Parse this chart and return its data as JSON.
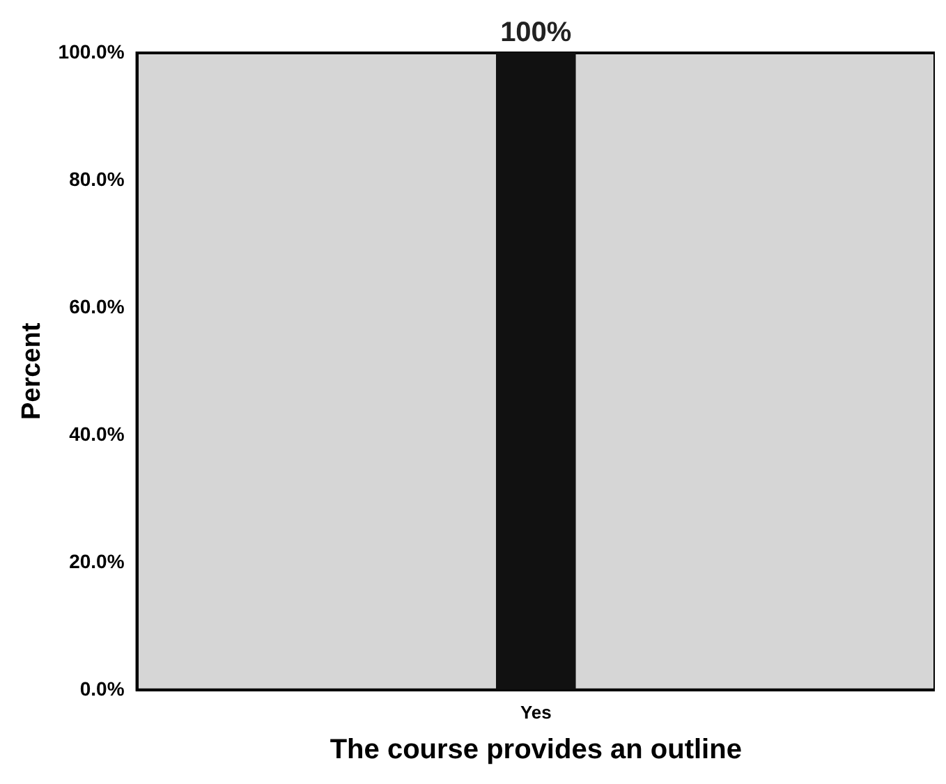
{
  "chart_data": {
    "type": "bar",
    "xlabel": "The course provides an outline",
    "ylabel": "Percent",
    "categories": [
      "Yes"
    ],
    "series": [
      {
        "color": "#111111",
        "values": [
          100
        ],
        "value_labels": [
          "100%"
        ]
      }
    ],
    "ylim": [
      0,
      100
    ],
    "yticks": [
      {
        "value": 0,
        "label": "0.0%"
      },
      {
        "value": 20,
        "label": "20.0%"
      },
      {
        "value": 40,
        "label": "40.0%"
      },
      {
        "value": 60,
        "label": "60.0%"
      },
      {
        "value": 80,
        "label": "80.0%"
      },
      {
        "value": 100,
        "label": "100.0%"
      }
    ],
    "grid": false,
    "legend": false
  }
}
